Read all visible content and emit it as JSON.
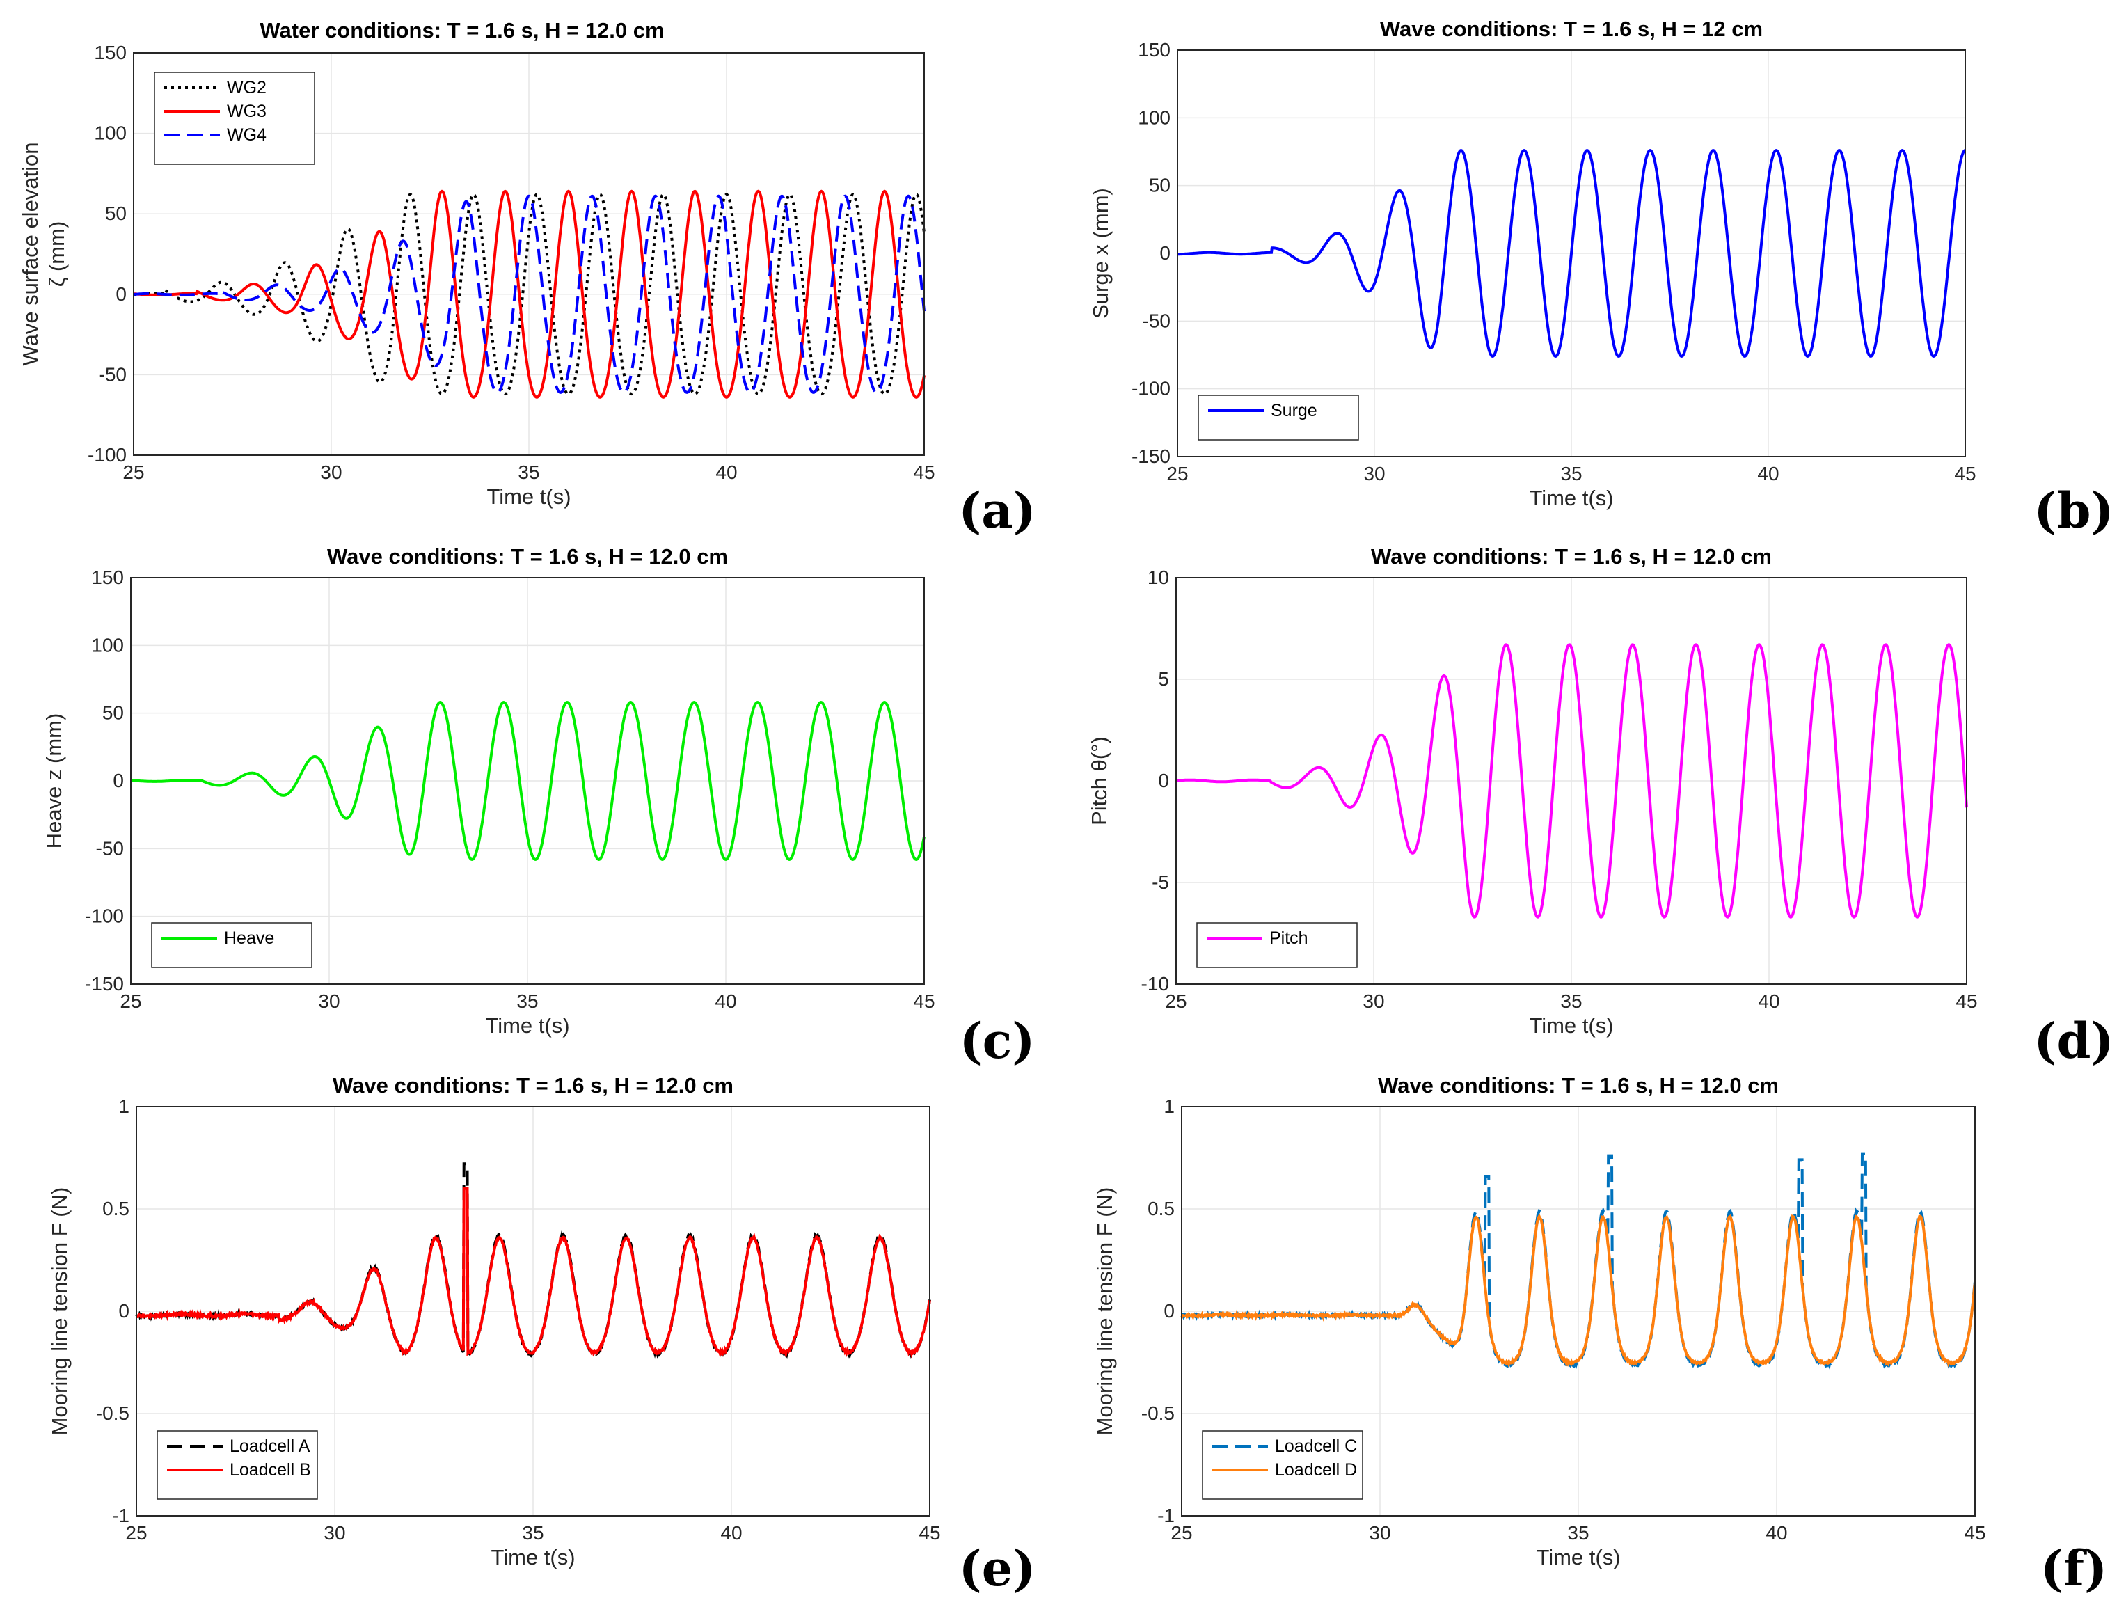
{
  "chart_data": [
    {
      "id": "a",
      "type": "line",
      "panel_label": "(a)",
      "title": "Water conditions: T = 1.6 s, H = 12.0 cm",
      "xlabel": "Time t(s)",
      "ylabel_lines": [
        "Wave surface elevation",
        "ζ (mm)"
      ],
      "xlim": [
        25,
        45
      ],
      "ylim": [
        -100,
        150
      ],
      "xticks": [
        25,
        30,
        35,
        40,
        45
      ],
      "yticks": [
        -100,
        -50,
        0,
        50,
        100,
        150
      ],
      "legend_position": "top-left",
      "series": [
        {
          "name": "WG2",
          "color": "#000000",
          "dash": "dotted",
          "signal": {
            "t0": 25.8,
            "t1": 31.6,
            "a0": 4,
            "a1": 62,
            "period": 1.6,
            "phase": 26.8,
            "offset": 8,
            "peaky": 0.35
          }
        },
        {
          "name": "WG3",
          "color": "#ff0000",
          "dash": "solid",
          "signal": {
            "t0": 26.6,
            "t1": 32.6,
            "a0": 3,
            "a1": 64,
            "period": 1.6,
            "phase": 27.6,
            "offset": 7,
            "peaky": 0.35
          }
        },
        {
          "name": "WG4",
          "color": "#0000ff",
          "dash": "dashed",
          "signal": {
            "t0": 27.2,
            "t1": 33.6,
            "a0": 3,
            "a1": 61,
            "period": 1.6,
            "phase": 28.2,
            "offset": 10,
            "peaky": 0.35
          }
        }
      ]
    },
    {
      "id": "b",
      "type": "line",
      "panel_label": "(b)",
      "title": "Wave conditions: T = 1.6 s, H = 12 cm",
      "xlabel": "Time t(s)",
      "ylabel_lines": [
        "Surge  x (mm)"
      ],
      "xlim": [
        25,
        45
      ],
      "ylim": [
        -150,
        150
      ],
      "xticks": [
        25,
        30,
        35,
        40,
        45
      ],
      "yticks": [
        -150,
        -100,
        -50,
        0,
        50,
        100,
        150
      ],
      "legend_position": "bottom-left",
      "series": [
        {
          "name": "Surge",
          "color": "#0000ff",
          "dash": "solid",
          "signal": {
            "t0": 27.4,
            "t1": 31.6,
            "a0": 4,
            "a1": 76,
            "period": 1.6,
            "phase": 28.6,
            "offset": -8,
            "peaky": 0
          }
        }
      ]
    },
    {
      "id": "c",
      "type": "line",
      "panel_label": "(c)",
      "title": "Wave conditions: T = 1.6 s, H = 12.0 cm",
      "xlabel": "Time t(s)",
      "ylabel_lines": [
        "Heave  z (mm)"
      ],
      "xlim": [
        25,
        45
      ],
      "ylim": [
        -150,
        150
      ],
      "xticks": [
        25,
        30,
        35,
        40,
        45
      ],
      "yticks": [
        -150,
        -100,
        -50,
        0,
        50,
        100,
        150
      ],
      "legend_position": "bottom-left",
      "series": [
        {
          "name": "Heave",
          "color": "#00ee00",
          "dash": "solid",
          "signal": {
            "t0": 26.8,
            "t1": 32.2,
            "a0": 3,
            "a1": 58,
            "period": 1.6,
            "phase": 27.6,
            "offset": 6,
            "peaky": 0
          }
        }
      ]
    },
    {
      "id": "d",
      "type": "line",
      "panel_label": "(d)",
      "title": "Wave conditions: T = 1.6 s, H = 12.0 cm",
      "xlabel": "Time t(s)",
      "ylabel_lines": [
        "Pitch  θ(°)"
      ],
      "xlim": [
        25,
        45
      ],
      "ylim": [
        -10,
        10
      ],
      "xticks": [
        25,
        30,
        35,
        40,
        45
      ],
      "yticks": [
        -10,
        -5,
        0,
        5,
        10
      ],
      "legend_position": "bottom-left",
      "series": [
        {
          "name": "Pitch",
          "color": "#ff00ff",
          "dash": "solid",
          "signal": {
            "t0": 27.4,
            "t1": 32.4,
            "a0": 0.3,
            "a1": 6.7,
            "period": 1.6,
            "phase": 28.15,
            "offset": 0,
            "peaky": 0
          }
        }
      ]
    },
    {
      "id": "e",
      "type": "line",
      "panel_label": "(e)",
      "title": "Wave conditions: T = 1.6 s, H = 12.0 cm",
      "xlabel": "Time t(s)",
      "ylabel_lines": [
        "Mooring line tension   F (N)"
      ],
      "xlim": [
        25,
        45
      ],
      "ylim": [
        -1,
        1
      ],
      "xticks": [
        25,
        30,
        35,
        40,
        45
      ],
      "yticks": [
        -1,
        -0.5,
        0,
        0.5,
        1
      ],
      "legend_position": "bottom-left",
      "series": [
        {
          "name": "Loadcell A",
          "color": "#000000",
          "dash": "dashed",
          "signal": {
            "t0": 28.6,
            "t1": 31.8,
            "a0": 0.04,
            "a1": 0.34,
            "period": 1.6,
            "phase": 28.95,
            "offset": 0.28,
            "peaky": 0.6,
            "noise": 0.012,
            "spikes": [
              [
                33.3,
                0.72
              ]
            ]
          }
        },
        {
          "name": "Loadcell B",
          "color": "#ff0000",
          "dash": "solid",
          "signal": {
            "t0": 28.6,
            "t1": 31.8,
            "a0": 0.04,
            "a1": 0.33,
            "period": 1.6,
            "phase": 28.95,
            "offset": 0.27,
            "peaky": 0.6,
            "noise": 0.012,
            "spikes": [
              [
                33.3,
                0.6
              ]
            ]
          }
        }
      ]
    },
    {
      "id": "f",
      "type": "line",
      "panel_label": "(f)",
      "title": "Wave conditions: T = 1.6 s, H = 12.0 cm",
      "xlabel": "Time t(s)",
      "ylabel_lines": [
        "Mooring line tension   F (N)"
      ],
      "xlim": [
        25,
        45
      ],
      "ylim": [
        -1,
        1
      ],
      "xticks": [
        25,
        30,
        35,
        40,
        45
      ],
      "yticks": [
        -1,
        -0.5,
        0,
        0.5,
        1
      ],
      "legend_position": "bottom-left",
      "series": [
        {
          "name": "Loadcell C",
          "color": "#0072bd",
          "dash": "dashed",
          "signal": {
            "t0": 30.4,
            "t1": 32.2,
            "a0": 0.02,
            "a1": 0.44,
            "period": 1.6,
            "phase": 30.42,
            "offset": 0.22,
            "peaky": 1.6,
            "noise": 0.012,
            "spikes": [
              [
                32.7,
                0.66
              ],
              [
                35.8,
                0.76
              ],
              [
                40.6,
                0.74
              ],
              [
                42.2,
                0.77
              ]
            ]
          }
        },
        {
          "name": "Loadcell D",
          "color": "#ff7f0e",
          "dash": "solid",
          "signal": {
            "t0": 30.4,
            "t1": 32.2,
            "a0": 0.02,
            "a1": 0.42,
            "period": 1.6,
            "phase": 30.42,
            "offset": 0.21,
            "peaky": 1.6,
            "noise": 0.01,
            "spikes": []
          }
        }
      ]
    }
  ]
}
